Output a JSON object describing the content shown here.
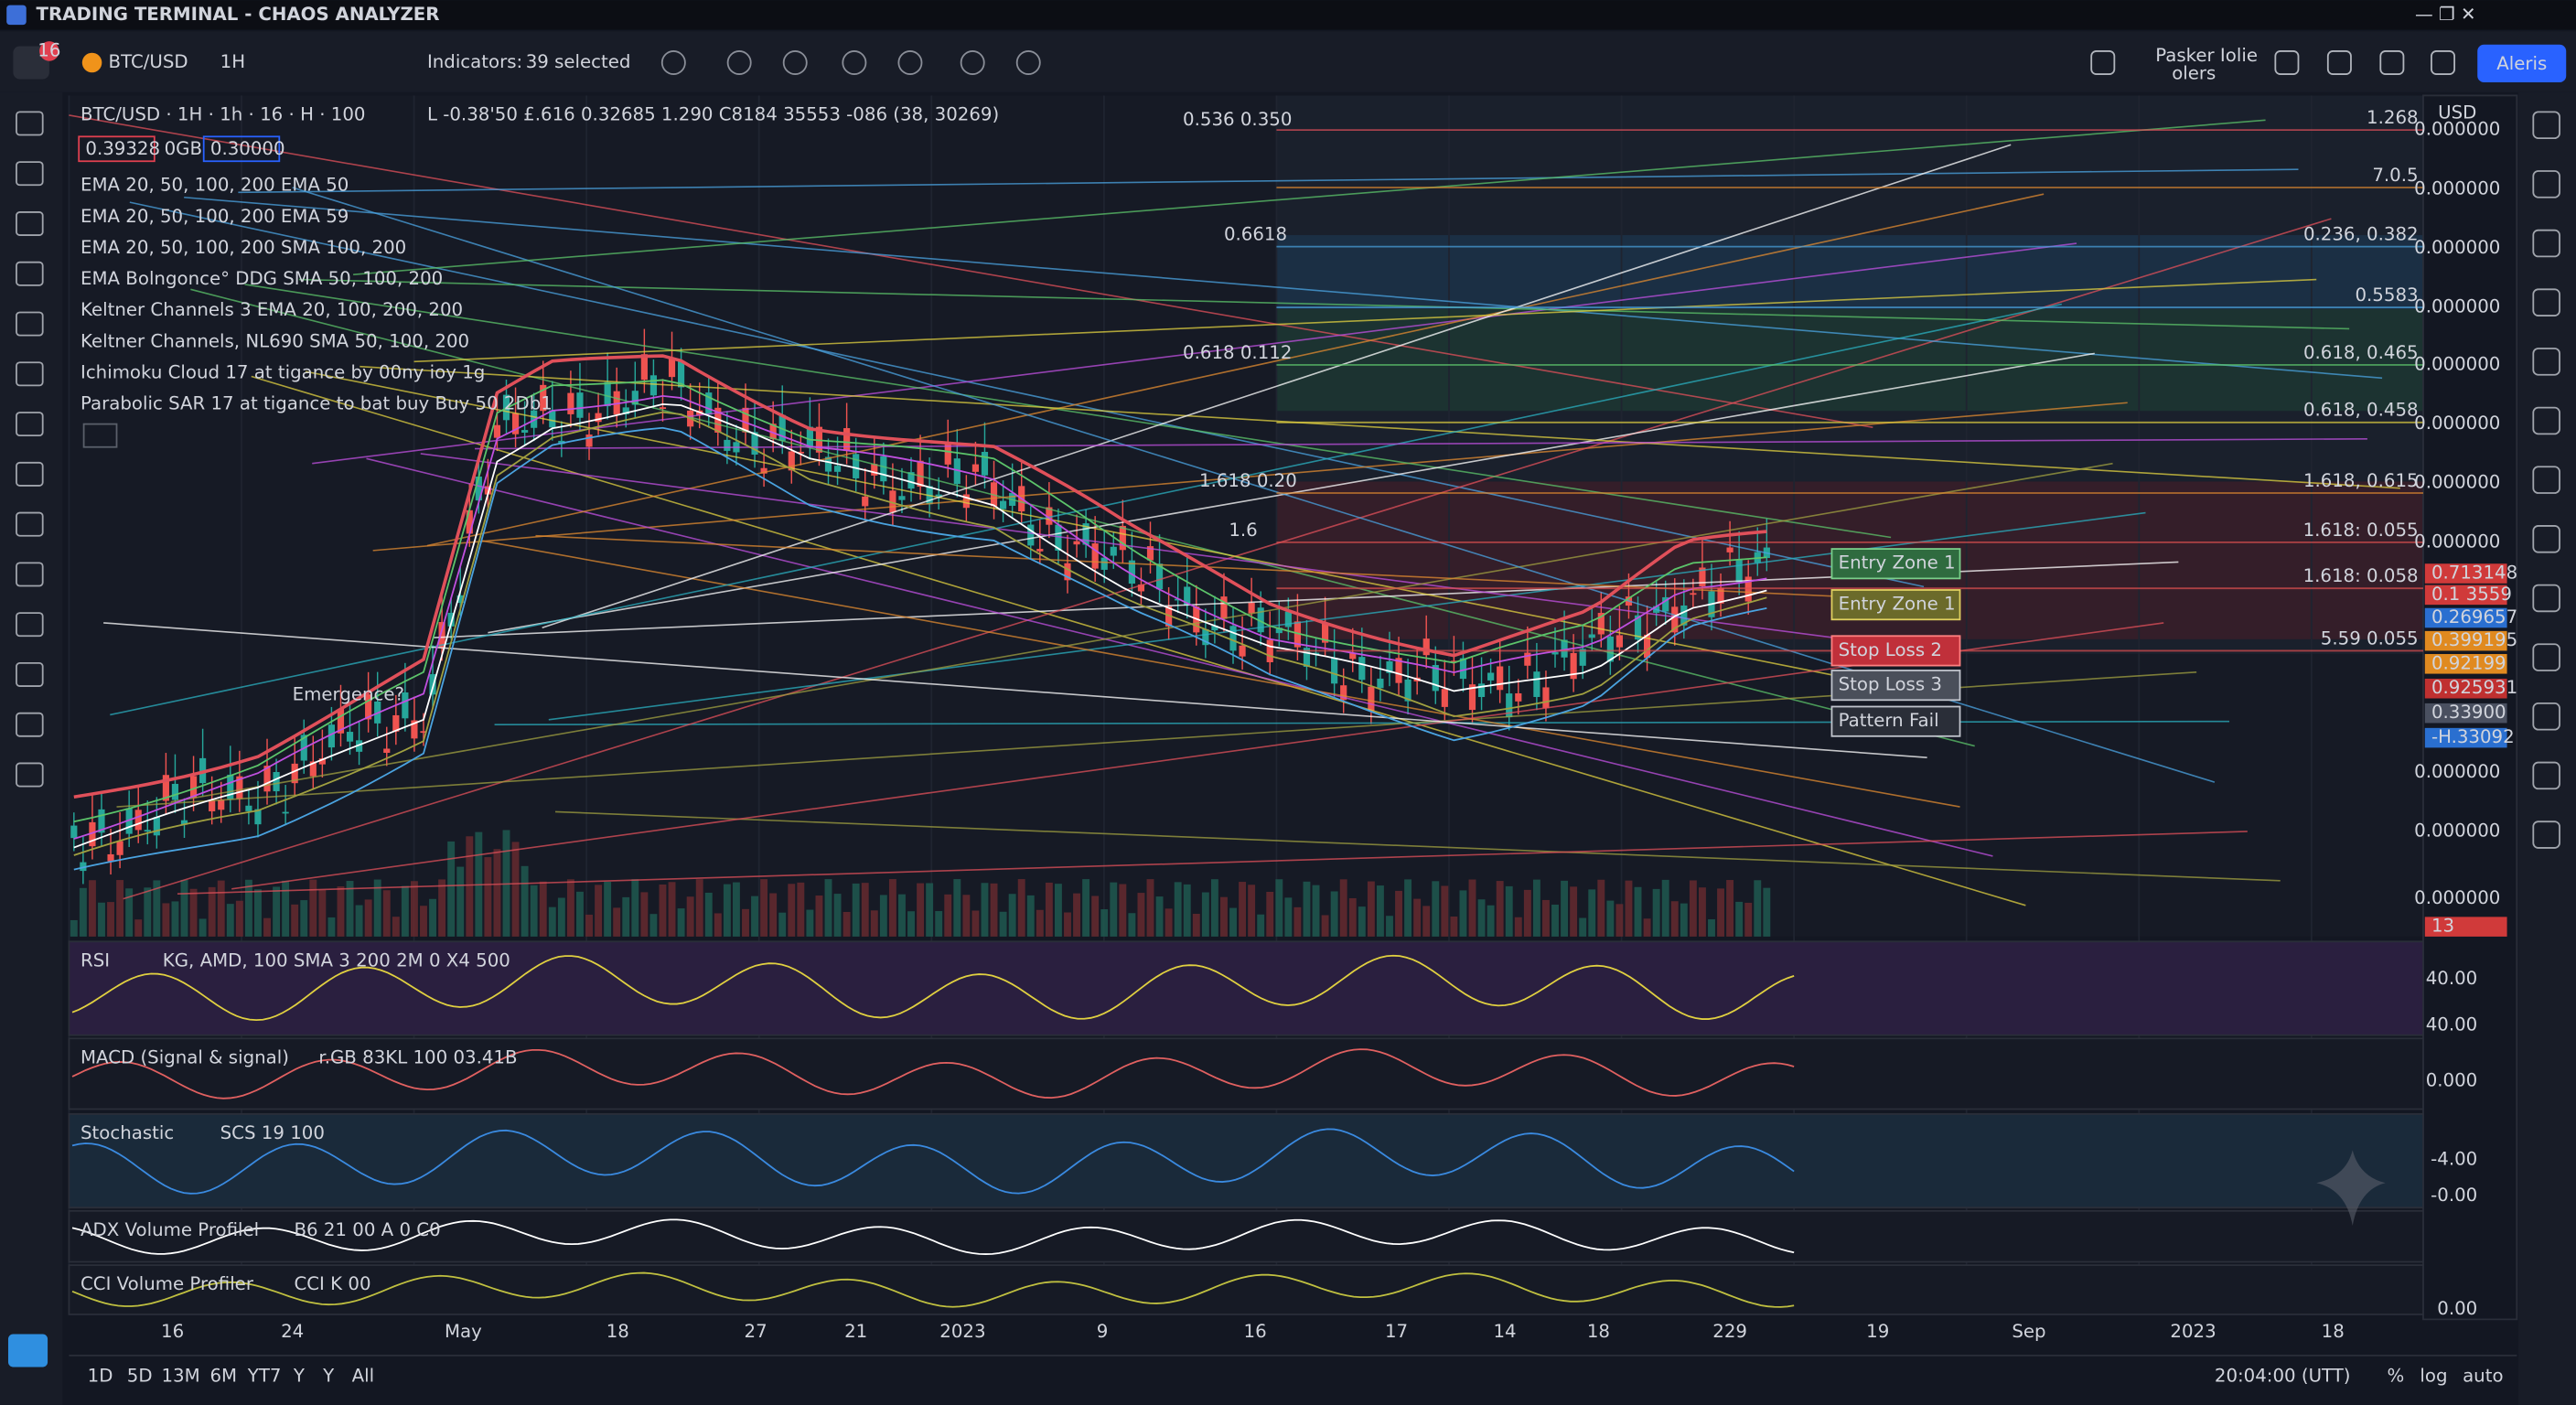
{
  "window": {
    "title": "TRADING TERMINAL - CHAOS ANALYZER"
  },
  "toolbar": {
    "badge": "16",
    "symbol": "BTC/USD",
    "interval": "1H",
    "indicators_label": "Indicators:",
    "indicators_value": "39 selected",
    "user_line1": "Pasker Iolie",
    "user_line2": "olers",
    "alerts_button": "Aleris"
  },
  "legend": {
    "header": "BTC/USD · 1H · 1h · 16 · H · 100",
    "header_values": "L -0.38'50 £.616 0.32685 1.290 C8184 35553 -086 (38, 30269)",
    "price_box1": "0.39328",
    "price_box_mid": "0GB",
    "price_box2": "0.30000",
    "rows": [
      "EMA 20, 50, 100, 200  EMA 50",
      "EMA 20, 50, 100, 200  EMA 59",
      "EMA 20, 50, 100, 200  SMA 100, 200",
      "EMA Bolngonce° DDG  SMA 50, 100, 200",
      "Keltner Channels  3  EMA 20, 100, 200, 200",
      "Keltner Channels, NL690  SMA 50, 100, 200",
      "Ichimoku Cloud  17 at tigance by 00ny ioy 1g",
      "Parabolic SAR  17 at tigance to bat buy Buy 50  2Db1"
    ]
  },
  "fib_left": [
    {
      "text": "0.536 0.350",
      "color": "#e0505a"
    },
    {
      "text": "0.6618",
      "color": "#4aa3e0"
    },
    {
      "text": "0.618 0.112",
      "color": "#5cc46a"
    },
    {
      "text": "1.618 0.20",
      "color": "#e06040"
    },
    {
      "text": "1.6",
      "color": "#e06040"
    }
  ],
  "fib_right": [
    {
      "text": "1.268",
      "color": "#e0505a"
    },
    {
      "text": "7.0.5",
      "color": "#e08a30"
    },
    {
      "text": "0.236, 0.382",
      "color": "#4aa3e0"
    },
    {
      "text": "0.5583",
      "color": "#4aa3e0"
    },
    {
      "text": "0.618, 0.465",
      "color": "#5cc46a"
    },
    {
      "text": "0.618, 0.458",
      "color": "#e0d040"
    },
    {
      "text": "1.618, 0.615",
      "color": "#e08a30"
    },
    {
      "text": "1.618: 0.055",
      "color": "#e05050"
    },
    {
      "text": "1.618: 0.058",
      "color": "#e05050"
    },
    {
      "text": "5.59 0.055",
      "color": "#e05050"
    }
  ],
  "zones": [
    {
      "text": "Entry Zone 1",
      "color": "#2f6b3f",
      "border": "#7ad08a"
    },
    {
      "text": "Entry Zone 1",
      "color": "#6b6a2a",
      "border": "#e0d060"
    },
    {
      "text": "Stop Loss 2",
      "color": "#c0303a",
      "border": "#ff8080"
    },
    {
      "text": "Stop Loss 3",
      "color": "#4a4f5a",
      "border": "#c0c4cc"
    },
    {
      "text": "Pattern Fail",
      "color": "#2a2e38",
      "border": "#c0c4cc"
    }
  ],
  "annotation": "Emergence?",
  "price_axis": {
    "currency": "USD",
    "labels": [
      "0.000000",
      "0.000000",
      "0.000000",
      "0.000000",
      "0.000000",
      "0.000000",
      "0.000000",
      "0.000000",
      "0.000000",
      "0.000000",
      "0.000000"
    ],
    "tags": [
      {
        "text": "0.713148",
        "color": "#d03a3a"
      },
      {
        "text": "0.1 3559",
        "color": "#d03a3a"
      },
      {
        "text": "0.269657",
        "color": "#2a6fd0"
      },
      {
        "text": "0.399195",
        "color": "#e08a20"
      },
      {
        "text": "0.92199",
        "color": "#e08a20"
      },
      {
        "text": "0.925931",
        "color": "#c03030"
      },
      {
        "text": "0.33900",
        "color": "#4a5060"
      },
      {
        "text": "-H.33092",
        "color": "#2a6fd0"
      },
      {
        "text": "13",
        "color": "#d03a3a"
      }
    ]
  },
  "panes": [
    {
      "name": "RSI",
      "params": "KG, AMD, 100  SMA  3  200  2M  0  X4  500",
      "labels": [
        "40.00",
        "40.00"
      ]
    },
    {
      "name": "MACD (Signal & signal)",
      "params": "r.GB  83KL  100  03.41B",
      "labels": [
        "0.000"
      ]
    },
    {
      "name": "Stochastic",
      "params": "SCS  19  100",
      "labels": [
        "-4.00",
        "-0.00"
      ]
    },
    {
      "name": "ADX Volume Profilel",
      "params": "B6  21  00  A  0  C0",
      "labels": []
    },
    {
      "name": "CCI Volume Profiler",
      "params": "CCI  K  00",
      "labels": [
        "0.00"
      ]
    }
  ],
  "time_axis": [
    "16",
    "24",
    "May",
    "18",
    "27",
    "21",
    "2023",
    "9",
    "16",
    "17",
    "14",
    "18",
    "229",
    "19",
    "Sep",
    "2023",
    "18"
  ],
  "ranges": [
    "1D",
    "5D",
    "13M",
    "6M",
    "YT7",
    "Y",
    "Y",
    "All"
  ],
  "status": {
    "clock": "20:04:00 (UTT)",
    "percent": "%",
    "log": "log",
    "auto": "auto"
  }
}
